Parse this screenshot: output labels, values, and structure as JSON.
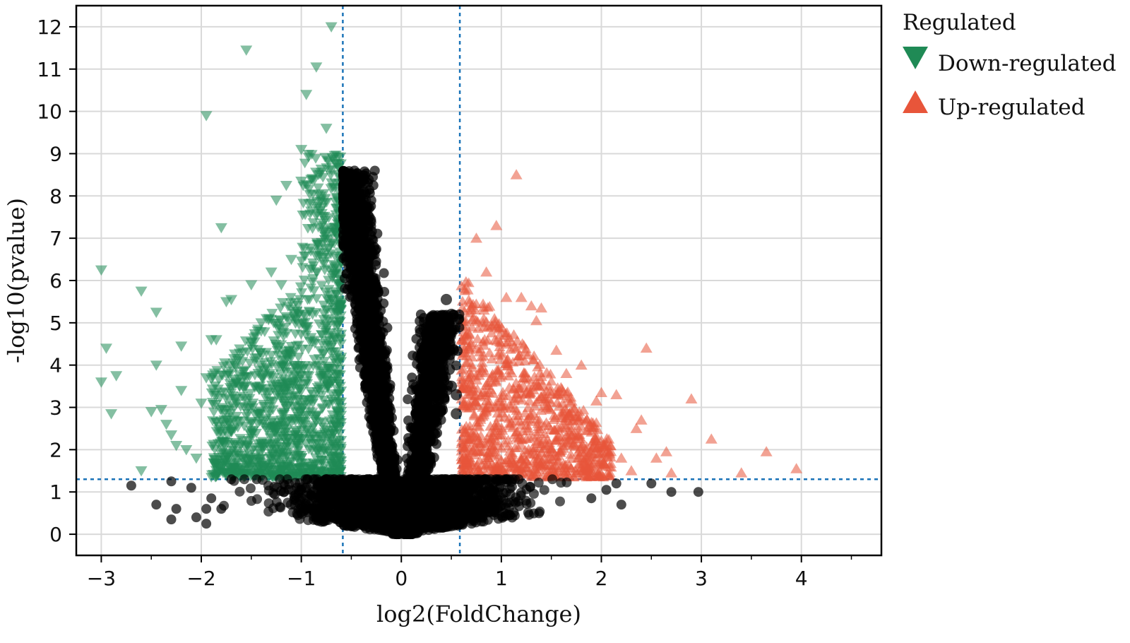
{
  "chart_data": {
    "type": "scatter",
    "xlabel": "log2(FoldChange)",
    "ylabel": "-log10(pvalue)",
    "xlim": [
      -3.25,
      4.8
    ],
    "ylim": [
      -0.5,
      12.5
    ],
    "x_ticks": [
      -3,
      -2,
      -1,
      0,
      1,
      2,
      3,
      4
    ],
    "x_tick_labels": [
      "−3",
      "−2",
      "−1",
      "0",
      "1",
      "2",
      "3",
      "4"
    ],
    "y_ticks": [
      0,
      1,
      2,
      3,
      4,
      5,
      6,
      7,
      8,
      9,
      10,
      11,
      12
    ],
    "y_tick_labels": [
      "0",
      "1",
      "2",
      "3",
      "4",
      "5",
      "6",
      "7",
      "8",
      "9",
      "10",
      "11",
      "12"
    ],
    "grid": true,
    "thresholds": {
      "log2fc": [
        -0.585,
        0.585
      ],
      "neg_log10_p": 1.3
    },
    "legend": {
      "title": "Regulated",
      "placement": "outside-top-right",
      "entries": [
        {
          "label": "Down-regulated",
          "marker": "triangle-down",
          "color": "#1f8a55"
        },
        {
          "label": "Up-regulated",
          "marker": "triangle-up",
          "color": "#e8553a"
        }
      ]
    },
    "colors": {
      "down": "#1f8a55",
      "up": "#e8553a",
      "not_significant": "#000000",
      "threshold_line": "#1a73b8"
    },
    "series": [
      {
        "name": "Down-regulated",
        "points": [
          [
            -3.0,
            6.25
          ],
          [
            -2.95,
            4.4
          ],
          [
            -3.0,
            3.6
          ],
          [
            -2.85,
            3.75
          ],
          [
            -2.9,
            2.85
          ],
          [
            -2.6,
            5.75
          ],
          [
            -2.6,
            1.5
          ],
          [
            -2.45,
            5.25
          ],
          [
            -2.45,
            4.0
          ],
          [
            -2.5,
            2.9
          ],
          [
            -2.4,
            2.95
          ],
          [
            -2.35,
            2.6
          ],
          [
            -2.3,
            2.35
          ],
          [
            -2.25,
            2.1
          ],
          [
            -2.2,
            4.45
          ],
          [
            -2.2,
            3.4
          ],
          [
            -2.15,
            2.0
          ],
          [
            -2.05,
            1.8
          ],
          [
            -2.0,
            3.1
          ],
          [
            -1.95,
            9.9
          ],
          [
            -1.95,
            3.7
          ],
          [
            -1.9,
            4.6
          ],
          [
            -1.85,
            4.6
          ],
          [
            -1.8,
            7.25
          ],
          [
            -1.75,
            5.5
          ],
          [
            -1.7,
            5.55
          ],
          [
            -1.65,
            3.6
          ],
          [
            -1.55,
            11.45
          ],
          [
            -1.5,
            5.9
          ],
          [
            -1.4,
            5.0
          ],
          [
            -1.3,
            6.2
          ],
          [
            -1.2,
            5.9
          ],
          [
            -1.15,
            8.25
          ],
          [
            -1.0,
            9.1
          ],
          [
            -1.0,
            8.35
          ],
          [
            -0.95,
            10.4
          ],
          [
            -0.85,
            11.05
          ],
          [
            -0.75,
            9.6
          ],
          [
            -0.7,
            12.0
          ],
          [
            -1.25,
            7.9
          ],
          [
            -1.1,
            6.5
          ]
        ]
      },
      {
        "name": "Up-regulated",
        "points": [
          [
            0.75,
            7.0
          ],
          [
            0.85,
            6.2
          ],
          [
            0.95,
            7.3
          ],
          [
            1.15,
            8.5
          ],
          [
            1.05,
            5.6
          ],
          [
            1.2,
            5.6
          ],
          [
            1.3,
            5.4
          ],
          [
            1.4,
            5.35
          ],
          [
            1.35,
            5.05
          ],
          [
            1.55,
            4.35
          ],
          [
            1.65,
            3.8
          ],
          [
            1.8,
            4.0
          ],
          [
            2.0,
            3.35
          ],
          [
            1.95,
            3.15
          ],
          [
            2.15,
            3.3
          ],
          [
            2.35,
            2.5
          ],
          [
            2.45,
            4.4
          ],
          [
            2.4,
            2.7
          ],
          [
            2.55,
            1.8
          ],
          [
            2.65,
            1.95
          ],
          [
            2.7,
            1.45
          ],
          [
            2.9,
            3.2
          ],
          [
            3.1,
            2.25
          ],
          [
            3.4,
            1.45
          ],
          [
            3.65,
            1.95
          ],
          [
            3.95,
            1.55
          ],
          [
            2.05,
            2.1
          ],
          [
            2.2,
            1.8
          ],
          [
            2.3,
            1.5
          ],
          [
            1.85,
            2.45
          ],
          [
            1.7,
            2.9
          ]
        ]
      }
    ]
  }
}
